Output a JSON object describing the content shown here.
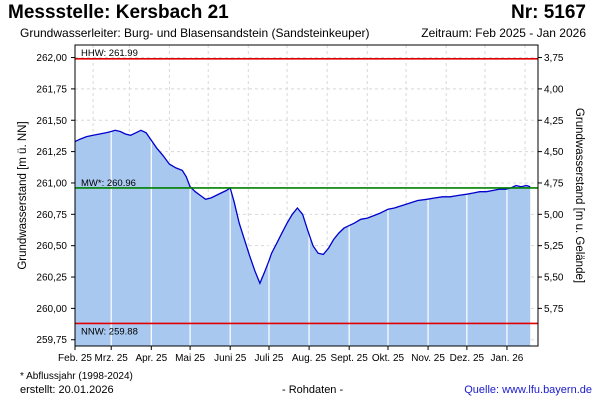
{
  "header": {
    "title": "Messstelle: Kersbach 21",
    "station_number": "Nr: 5167",
    "aquifer": "Grundwasserleiter:  Burg- und Blasensandstein (Sandsteinkeuper)",
    "period": "Zeitraum: Feb 2025 - Jan 2026"
  },
  "footer": {
    "footnote": "* Abflussjahr (1998-2024)",
    "created": "erstellt:  20.01.2026",
    "raw_data": "- Rohdaten -",
    "source": "Quelle:  www.lfu.bayern.de"
  },
  "colors": {
    "area_fill": "#a8c8f0",
    "line": "#0000cc",
    "hhw_line": "#e00000",
    "nnw_line": "#e00000",
    "mw_line": "#008000",
    "grid": "#d8d8d8",
    "month_grid": "#ffffff"
  },
  "chart_data": {
    "type": "area",
    "ylabel": "Grundwasserstand [m ü. NN]",
    "y2label": "Grundwasserstand [m u. Gelände]",
    "ylim": [
      259.7,
      262.1
    ],
    "y_ticks": [
      {
        "v": 262.0,
        "label": "262,00"
      },
      {
        "v": 261.75,
        "label": "261,75"
      },
      {
        "v": 261.5,
        "label": "261,50"
      },
      {
        "v": 261.25,
        "label": "261,25"
      },
      {
        "v": 261.0,
        "label": "261,00"
      },
      {
        "v": 260.75,
        "label": "260,75"
      },
      {
        "v": 260.5,
        "label": "260,50"
      },
      {
        "v": 260.25,
        "label": "260,25"
      },
      {
        "v": 260.0,
        "label": "260,00"
      },
      {
        "v": 259.75,
        "label": "259,75"
      }
    ],
    "y2_ticks": [
      {
        "v": 262.0,
        "label": "3,75"
      },
      {
        "v": 261.75,
        "label": "4,00"
      },
      {
        "v": 261.5,
        "label": "4,25"
      },
      {
        "v": 261.25,
        "label": "4,50"
      },
      {
        "v": 261.0,
        "label": "4,75"
      },
      {
        "v": 260.75,
        "label": "5,00"
      },
      {
        "v": 260.5,
        "label": "5,25"
      },
      {
        "v": 260.25,
        "label": "5,50"
      },
      {
        "v": 260.0,
        "label": "5,75"
      }
    ],
    "x_ticks": [
      {
        "date": "2025-02-01",
        "label": "Feb. 25"
      },
      {
        "date": "2025-03-01",
        "label": "Mrz. 25"
      },
      {
        "date": "2025-04-01",
        "label": "Apr. 25"
      },
      {
        "date": "2025-05-01",
        "label": "Mai 25"
      },
      {
        "date": "2025-06-01",
        "label": "Juni 25"
      },
      {
        "date": "2025-07-01",
        "label": "Juli 25"
      },
      {
        "date": "2025-08-01",
        "label": "Aug. 25"
      },
      {
        "date": "2025-09-01",
        "label": "Sept. 25"
      },
      {
        "date": "2025-10-01",
        "label": "Okt. 25"
      },
      {
        "date": "2025-11-01",
        "label": "Nov. 25"
      },
      {
        "date": "2025-12-01",
        "label": "Dez. 25"
      },
      {
        "date": "2026-01-01",
        "label": "Jan. 26"
      }
    ],
    "xlim": [
      "2025-02-01",
      "2026-01-25"
    ],
    "reference_lines": [
      {
        "id": "hhw",
        "label": "HHW: 261.99",
        "value": 261.99
      },
      {
        "id": "mw",
        "label": "MW*: 260.96",
        "value": 260.96
      },
      {
        "id": "nnw",
        "label": "NNW: 259.88",
        "value": 259.88
      }
    ],
    "series": [
      {
        "x": [
          "2025-02-01",
          "2025-02-05",
          "2025-02-10",
          "2025-02-15",
          "2025-02-20",
          "2025-02-25",
          "2025-03-01",
          "2025-03-04",
          "2025-03-08",
          "2025-03-12",
          "2025-03-16",
          "2025-03-20",
          "2025-03-24",
          "2025-03-28",
          "2025-04-01",
          "2025-04-05",
          "2025-04-10",
          "2025-04-15",
          "2025-04-20",
          "2025-04-25",
          "2025-04-28",
          "2025-05-01",
          "2025-05-05",
          "2025-05-09",
          "2025-05-13",
          "2025-05-17",
          "2025-05-21",
          "2025-05-25",
          "2025-05-29",
          "2025-06-01",
          "2025-06-04",
          "2025-06-08",
          "2025-06-12",
          "2025-06-16",
          "2025-06-20",
          "2025-06-24",
          "2025-06-28",
          "2025-07-01",
          "2025-07-03",
          "2025-07-07",
          "2025-07-11",
          "2025-07-15",
          "2025-07-19",
          "2025-07-23",
          "2025-07-27",
          "2025-07-31",
          "2025-08-04",
          "2025-08-08",
          "2025-08-12",
          "2025-08-16",
          "2025-08-20",
          "2025-08-24",
          "2025-08-28",
          "2025-09-01",
          "2025-09-05",
          "2025-09-10",
          "2025-09-15",
          "2025-09-20",
          "2025-09-25",
          "2025-10-01",
          "2025-10-06",
          "2025-10-12",
          "2025-10-18",
          "2025-10-24",
          "2025-10-31",
          "2025-11-06",
          "2025-11-12",
          "2025-11-18",
          "2025-11-24",
          "2025-12-01",
          "2025-12-06",
          "2025-12-11",
          "2025-12-16",
          "2025-12-21",
          "2025-12-26",
          "2025-12-31",
          "2026-01-04",
          "2026-01-08",
          "2026-01-12",
          "2026-01-16",
          "2026-01-19"
        ],
        "y": [
          261.33,
          261.35,
          261.37,
          261.38,
          261.39,
          261.4,
          261.41,
          261.42,
          261.41,
          261.39,
          261.38,
          261.4,
          261.42,
          261.4,
          261.34,
          261.28,
          261.22,
          261.15,
          261.12,
          261.1,
          261.05,
          260.97,
          260.93,
          260.9,
          260.87,
          260.88,
          260.9,
          260.92,
          260.94,
          260.96,
          260.85,
          260.68,
          260.55,
          260.42,
          260.3,
          260.2,
          260.3,
          260.38,
          260.44,
          260.52,
          260.6,
          260.68,
          260.75,
          260.8,
          260.75,
          260.62,
          260.5,
          260.44,
          260.43,
          260.48,
          260.55,
          260.6,
          260.64,
          260.66,
          260.68,
          260.71,
          260.72,
          260.74,
          260.76,
          260.79,
          260.8,
          260.82,
          260.84,
          260.86,
          260.87,
          260.88,
          260.89,
          260.89,
          260.9,
          260.91,
          260.92,
          260.93,
          260.93,
          260.94,
          260.95,
          260.95,
          260.96,
          260.98,
          260.97,
          260.98,
          260.97
        ]
      }
    ]
  }
}
